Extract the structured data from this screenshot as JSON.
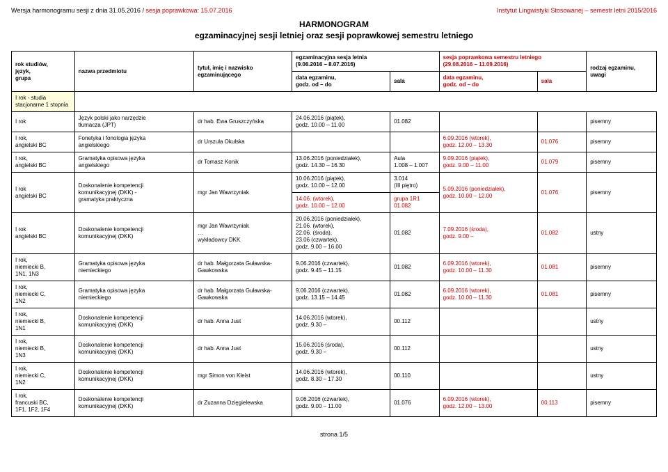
{
  "header": {
    "version_black": "Wersja harmonogramu sesji z dnia 31.05.2016 /",
    "version_red": " sesja poprawkowa: 15.07.2016",
    "institute": "Instytut Lingwistyki Stosowanej – semestr letni 2015/2016"
  },
  "title": {
    "line1": "HARMONOGRAM",
    "line2": "egzaminacyjnej sesji letniej oraz sesji poprawkowej semestru letniego"
  },
  "span_headers": {
    "left_title": "egzaminacyjna sesja letnia",
    "left_dates": "(9.06.2016 – 8.07.2016)",
    "right_title": "sesja poprawkowa semestru letniego",
    "right_dates": "(29.08.2016 – 11.09.2016)"
  },
  "columns": {
    "c0": "rok studiów,\njęzyk,\ngrupa",
    "c1": "nazwa przedmiotu",
    "c2": "tytuł, imię i nazwisko\negzaminującego",
    "c3": "data egzaminu,\ngodz. od – do",
    "c4": "sala",
    "c5": "data egzaminu,\ngodz. od – do",
    "c6": "sala",
    "c7": "rodzaj egzaminu,\nuwagi"
  },
  "section_label": "I rok - studia stacjonarne 1 stopnia",
  "rows": [
    {
      "r0": "I rok",
      "r1": "Język polski jako narzędzie\ntłumacza (JPT)",
      "r2": "dr hab. Ewa Gruszczyńska",
      "r3": "24.06.2016 (piątek),\ngodz. 10.00 – 11.00",
      "r4": "01.082",
      "r5": "",
      "r6": "",
      "r7": "pisemny"
    },
    {
      "r0": "I rok,\nangielski BC",
      "r1": "Fonetyka i fonologia języka\nangielskiego",
      "r2": "dr Urszula Okulska",
      "r3": "",
      "r4": "",
      "r5": "6.09.2016 (wtorek),\ngodz. 12.00 – 13.30",
      "r6": "01.076",
      "r7": "pisemny"
    },
    {
      "r0": "I rok,\nangielski BC",
      "r1": "Gramatyka opisowa języka\nangielskiego",
      "r2": "dr Tomasz Konik",
      "r3": "13.06.2016 (poniedziałek),\ngodz. 14.30 – 16.30",
      "r4": "Aula\n1.008 – 1.007",
      "r5": "9.09.2016 (piątek),\ngodz. 9.00 – 11.00",
      "r6": "01.079",
      "r7": "pisemny"
    },
    {
      "r0": "I rok\nangielski BC",
      "r1": "Doskonalenie kompetencji\nkomunikacyjnej (DKK) -\ngramatyka praktyczna",
      "r2": "mgr Jan Wawrzyniak",
      "r3": "10.06.2016 (piątek),\ngodz. 10.00 – 12.00",
      "r4": "3.014\n(III piętro)",
      "r5": "5.09.2016 (poniedziałek),\ngodz. 10.00 – 12.00",
      "r6": "01.076",
      "r7": "pisemny",
      "grupa": {
        "g3": "14.06.      (wtorek),\ngodz. 10.00 – 12.00",
        "g4": "grupa 1R1\n01.082"
      }
    },
    {
      "r0": "I rok\nangielski BC",
      "r1": "Doskonalenie kompetencji\nkomunikacyjnej (DKK)",
      "r2": "mgr Jan Wawrzyniak\n…\nwykładowcy DKK",
      "r3": "20.06.2016 (poniedziałek),\n21.06.      (wtorek),\n22.06.      (środa),\n23.06      (czwartek),\ngodz. 9.00 – 16.00",
      "r4": "01.082",
      "r5": "7.09.2016 (środa),\ngodz. 9.00 –",
      "r6": "01.082",
      "r7": "ustny"
    },
    {
      "r0": "I rok,\nniemiecki B,\n1N1, 1N3",
      "r1": "Gramatyka opisowa języka\nniemieckiego",
      "r2": "dr hab. Małgorzata Guławska-\nGawkowska",
      "r3": "9.06.2016 (czwartek),\ngodz. 9.45 – 11.15",
      "r4": "01.082",
      "r5": "6.09.2016 (wtorek),\ngodz. 10.00 – 11.30",
      "r6": "01.081",
      "r7": "pisemny"
    },
    {
      "r0": "I rok,\nniemiecki C,\n1N2",
      "r1": "Gramatyka opisowa języka\nniemieckiego",
      "r2": "dr hab. Małgorzata Guławska-\nGawkowska",
      "r3": "9.06.2016 (czwartek),\ngodz. 13.15 – 14.45",
      "r4": "01.082",
      "r5": "6.09.2016 (wtorek),\ngodz. 10.00 – 11.30",
      "r6": "01.081",
      "r7": "pisemny"
    },
    {
      "r0": "I rok,\nniemiecki B,\n1N1",
      "r1": "Doskonalenie kompetencji\nkomunikacyjnej (DKK)",
      "r2": "dr hab. Anna Just",
      "r3": "14.06.2016 (wtorek),\ngodz. 9.30 –",
      "r4": "00.112",
      "r5": "",
      "r6": "",
      "r7": "ustny"
    },
    {
      "r0": "I rok,\nniemiecki B,\n1N3",
      "r1": "Doskonalenie kompetencji\nkomunikacyjnej (DKK)",
      "r2": "dr hab. Anna Just",
      "r3": "15.06.2016 (środa),\ngodz. 9.30 –",
      "r4": "00.112",
      "r5": "",
      "r6": "",
      "r7": "ustny"
    },
    {
      "r0": "I rok,\nniemiecki C,\n1N2",
      "r1": "Doskonalenie kompetencji\nkomunikacyjnej (DKK)",
      "r2": "mgr Simon von Kleist",
      "r3": "14.06.2016 (wtorek),\ngodz. 8.30 – 17.30",
      "r4": "00.110",
      "r5": "",
      "r6": "",
      "r7": "ustny"
    },
    {
      "r0": "I rok,\nfrancuski BC,\n1F1, 1F2, 1F4",
      "r1": "Doskonalenie kompetencji\nkomunikacyjnej (DKK)",
      "r2": "dr Zuzanna Dzięgielewska",
      "r3": "9.06.2016 (czwartek),\ngodz. 9.00 – 11.00",
      "r4": "01.076",
      "r5": "6.09.2016 (wtorek),\ngodz. 12.00 – 13.00",
      "r6": "00.113",
      "r7": "pisemny"
    }
  ],
  "footer": "strona 1/5"
}
